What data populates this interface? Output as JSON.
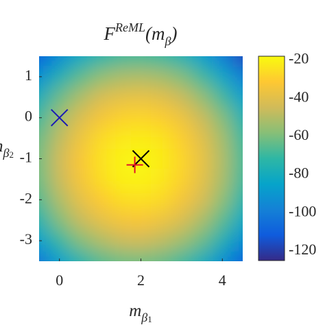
{
  "chart_data": {
    "type": "heatmap",
    "title": [
      "F",
      "ReML",
      "(m",
      "β",
      ")"
    ],
    "xlabel": [
      "m",
      "β",
      "1"
    ],
    "ylabel": [
      "m",
      "β",
      "2"
    ],
    "x": [
      -0.5,
      0,
      0.5,
      1,
      1.5,
      2,
      2.5,
      3,
      3.5,
      4,
      4.5
    ],
    "y": [
      1.5,
      1,
      0.5,
      0,
      -0.5,
      -1,
      -1.5,
      -2,
      -2.5,
      -3,
      -3.5
    ],
    "z": [
      [
        -109,
        -94,
        -82,
        -74,
        -69,
        -68,
        -70,
        -76,
        -86,
        -99,
        -116
      ],
      [
        -92,
        -77,
        -65,
        -57,
        -52,
        -51,
        -53,
        -59,
        -69,
        -83,
        -99
      ],
      [
        -79,
        -63,
        -52,
        -43,
        -39,
        -38,
        -40,
        -46,
        -56,
        -69,
        -86
      ],
      [
        -69,
        -54,
        -42,
        -34,
        -29,
        -28,
        -30,
        -36,
        -46,
        -59,
        -76
      ],
      [
        -63,
        -48,
        -36,
        -27,
        -23,
        -22,
        -24,
        -30,
        -40,
        -53,
        -70
      ],
      [
        -61,
        -45,
        -33,
        -25,
        -20,
        -19,
        -22,
        -28,
        -38,
        -51,
        -68
      ],
      [
        -62,
        -46,
        -34,
        -26,
        -21,
        -20,
        -23,
        -29,
        -39,
        -52,
        -69
      ],
      [
        -66,
        -51,
        -39,
        -31,
        -26,
        -25,
        -27,
        -34,
        -43,
        -57,
        -74
      ],
      [
        -75,
        -59,
        -47,
        -39,
        -34,
        -33,
        -36,
        -42,
        -52,
        -65,
        -82
      ],
      [
        -86,
        -71,
        -59,
        -51,
        -46,
        -45,
        -48,
        -54,
        -63,
        -77,
        -94
      ],
      [
        -102,
        -86,
        -75,
        -66,
        -62,
        -61,
        -63,
        -69,
        -79,
        -92,
        -109
      ]
    ],
    "xlim": [
      -0.5,
      4.5
    ],
    "ylim": [
      -3.5,
      1.5
    ],
    "xticks": [
      0,
      2,
      4
    ],
    "yticks": [
      1,
      0,
      -1,
      -2,
      -3
    ],
    "clim": [
      -125,
      -18
    ],
    "cticks": [
      -20,
      -40,
      -60,
      -80,
      -100,
      -120
    ],
    "colormap": [
      "#352a87",
      "#0f5cdd",
      "#1481d6",
      "#06a4ca",
      "#2eb7a4",
      "#87bf77",
      "#d1bb59",
      "#fec832",
      "#f9fb0e"
    ],
    "markers": [
      {
        "x": 0,
        "y": 0,
        "shape": "x",
        "color": "#1a1ab4"
      },
      {
        "x": 2,
        "y": -1,
        "shape": "x",
        "color": "#000000"
      },
      {
        "x": 1.85,
        "y": -1.15,
        "shape": "+",
        "color": "#e0102a"
      }
    ]
  }
}
